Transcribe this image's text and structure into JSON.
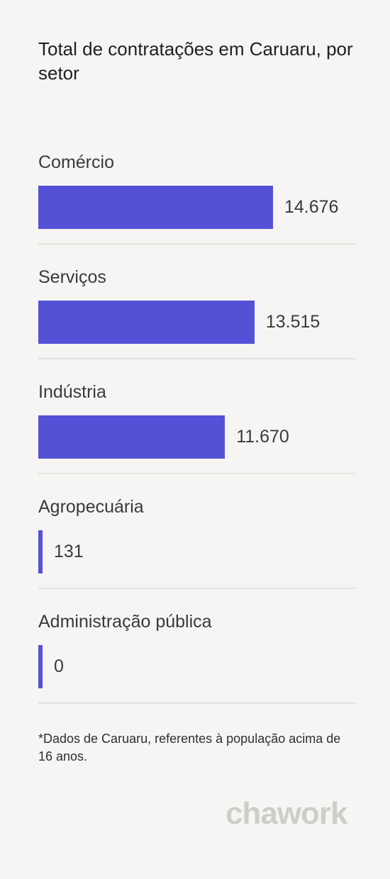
{
  "brand": {
    "logo_text": "chawork"
  },
  "chart_data": {
    "type": "bar",
    "orientation": "horizontal",
    "title": "Total de contratações em Caruaru, por setor",
    "categories": [
      "Comércio",
      "Serviços",
      "Indústria",
      "Agropecuária",
      "Administração pública"
    ],
    "values": [
      14676,
      13515,
      11670,
      131,
      0
    ],
    "value_labels": [
      "14.676",
      "13.515",
      "11.670",
      "131",
      "0"
    ],
    "xlabel": "",
    "ylabel": "",
    "bar_color": "#5451d6",
    "grid": false
  },
  "footnote": "*Dados de Caruaru, referentes à população acima de 16 anos."
}
